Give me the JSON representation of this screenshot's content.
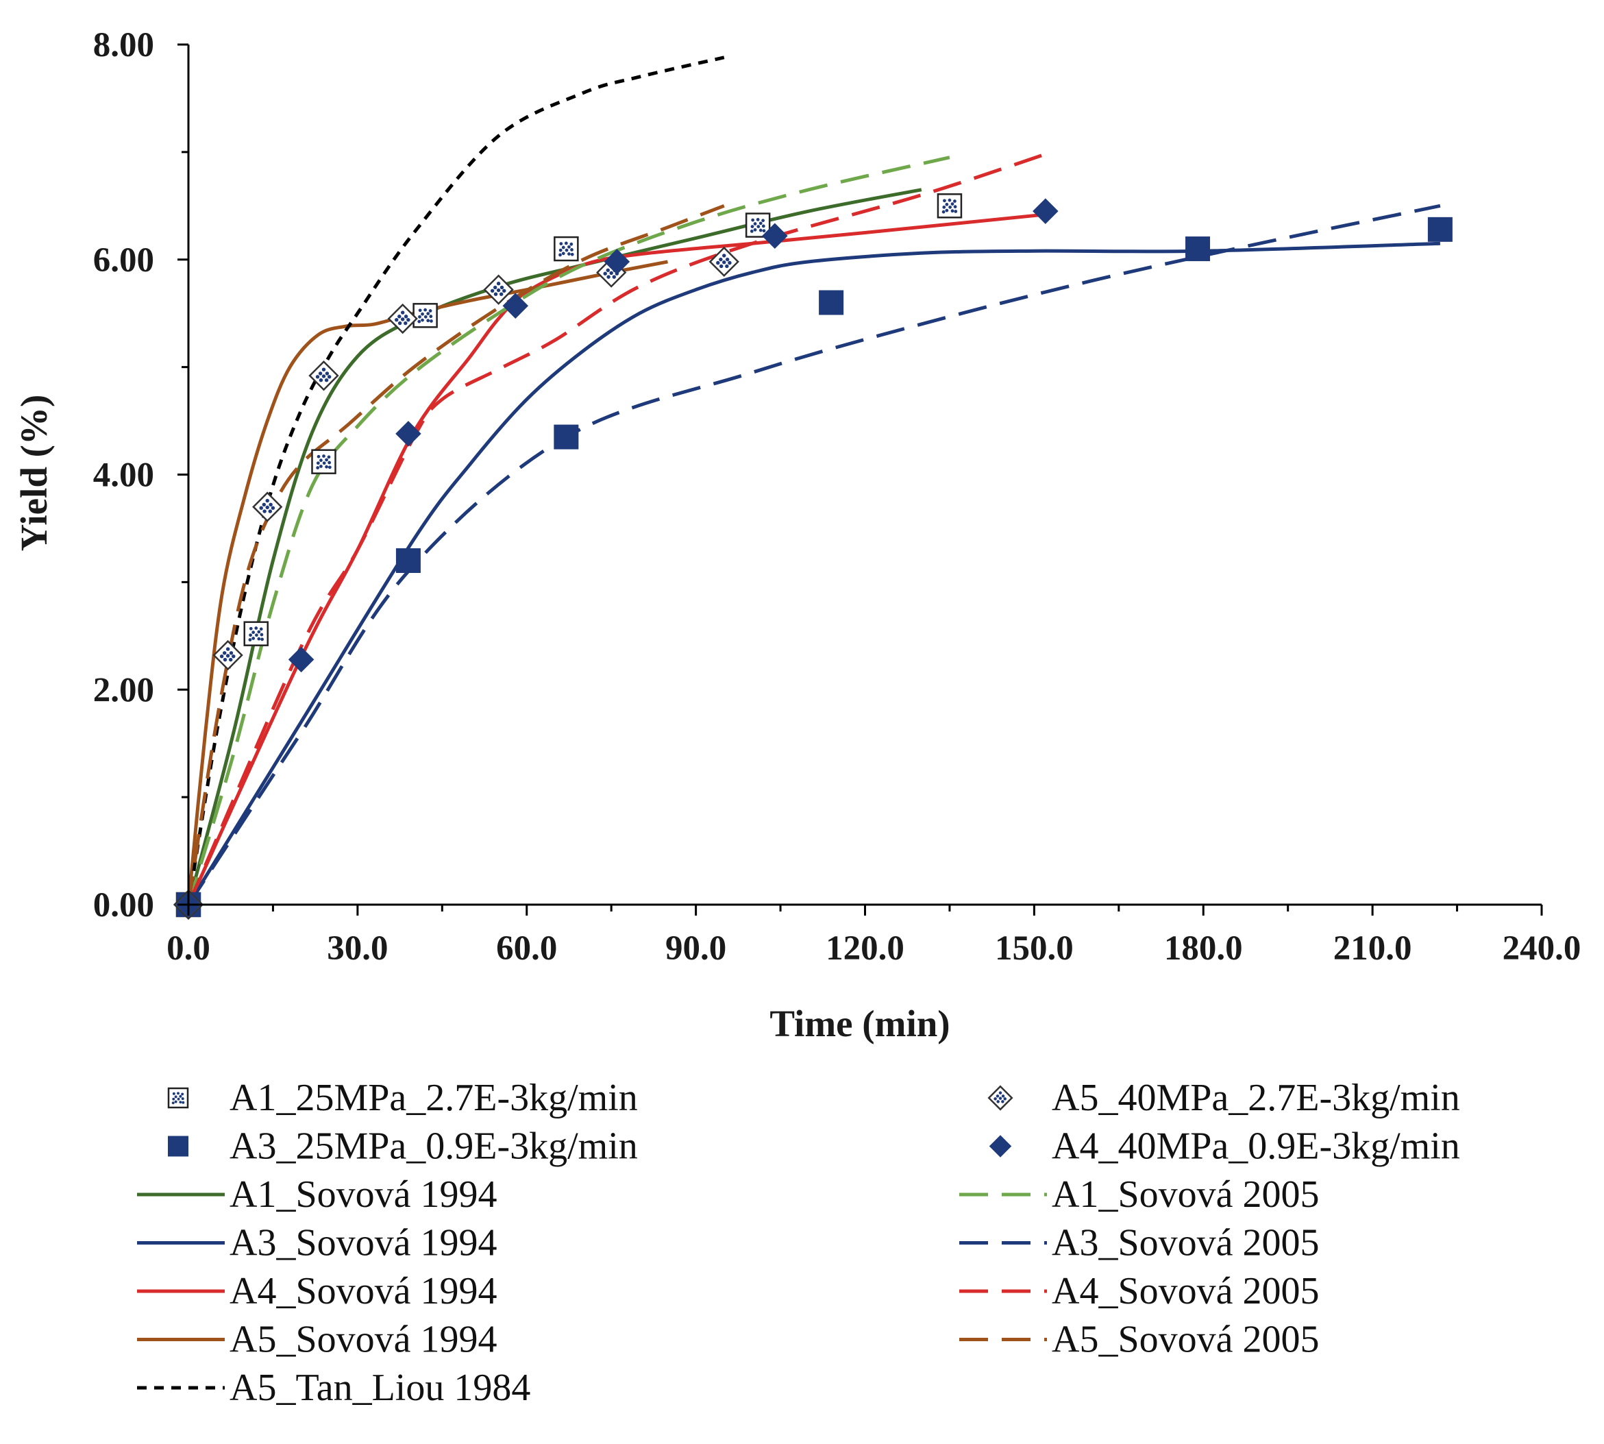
{
  "chart_data": {
    "type": "scatter+line",
    "title": "",
    "xlabel": "Time (min)",
    "ylabel": "Yield (%)",
    "xlim": [
      0,
      240
    ],
    "ylim": [
      0,
      8
    ],
    "x_ticks": [
      0,
      30,
      60,
      90,
      120,
      150,
      180,
      210,
      240
    ],
    "x_tick_labels": [
      "0.0",
      "30.0",
      "60.0",
      "90.0",
      "120.0",
      "150.0",
      "180.0",
      "210.0",
      "240.0"
    ],
    "y_ticks": [
      0,
      2,
      4,
      6,
      8
    ],
    "y_tick_labels": [
      "0.00",
      "2.00",
      "4.00",
      "6.00",
      "8.00"
    ],
    "grid": false,
    "legend_position": "bottom",
    "colors": {
      "navy": "#1f3a7a",
      "dark_green": "#3c6b2a",
      "light_green": "#6fa84a",
      "red": "#d92b2b",
      "brown": "#a0521b",
      "black": "#000000"
    },
    "series": [
      {
        "name": "A1_25MPa_2.7E-3kg/min",
        "kind": "points",
        "marker": "dotted-square",
        "color": "#1f3a7a",
        "x": [
          0,
          12,
          24,
          42,
          67,
          101,
          135
        ],
        "y": [
          0,
          2.52,
          4.12,
          5.48,
          6.1,
          6.32,
          6.5
        ]
      },
      {
        "name": "A3_25MPa_0.9E-3kg/min",
        "kind": "points",
        "marker": "square",
        "color": "#1f3a7a",
        "x": [
          0,
          39,
          67,
          114,
          179,
          222
        ],
        "y": [
          0,
          3.2,
          4.35,
          5.6,
          6.1,
          6.28
        ]
      },
      {
        "name": "A1_Sovová 1994",
        "kind": "line",
        "dash": "solid",
        "color": "#3c6b2a",
        "x": [
          0,
          8,
          15,
          22,
          30,
          40,
          55,
          70,
          90,
          110,
          130
        ],
        "y": [
          0,
          1.6,
          3.2,
          4.4,
          5.1,
          5.45,
          5.75,
          5.95,
          6.2,
          6.45,
          6.65
        ]
      },
      {
        "name": "A3_Sovová 1994",
        "kind": "line",
        "dash": "solid",
        "color": "#1f3a7a",
        "x": [
          0,
          20,
          40,
          50,
          60,
          70,
          80,
          90,
          100,
          110,
          130,
          150,
          180,
          222
        ],
        "y": [
          0,
          1.7,
          3.4,
          4.1,
          4.7,
          5.15,
          5.5,
          5.72,
          5.88,
          5.98,
          6.06,
          6.08,
          6.08,
          6.15
        ]
      },
      {
        "name": "A4_Sovová 1994",
        "kind": "line",
        "dash": "solid",
        "color": "#d92b2b",
        "x": [
          0,
          20,
          30,
          40,
          50,
          55,
          60,
          70,
          80,
          100,
          120,
          152
        ],
        "y": [
          0,
          2.3,
          3.3,
          4.4,
          5.1,
          5.45,
          5.7,
          5.95,
          6.05,
          6.15,
          6.25,
          6.42
        ]
      },
      {
        "name": "A5_Sovová 1994",
        "kind": "line",
        "dash": "solid",
        "color": "#a0521b",
        "x": [
          0,
          3,
          6,
          10,
          14,
          18,
          23,
          28,
          33,
          40,
          50,
          60,
          75,
          85
        ],
        "y": [
          0,
          1.6,
          2.9,
          3.8,
          4.5,
          5.0,
          5.3,
          5.38,
          5.4,
          5.5,
          5.62,
          5.72,
          5.88,
          5.98
        ]
      },
      {
        "name": "A5_Tan_Liou 1984",
        "kind": "line",
        "dash": "short",
        "color": "#000000",
        "x": [
          0,
          5,
          10,
          15,
          20,
          25,
          30,
          40,
          55,
          70,
          80,
          95
        ],
        "y": [
          0,
          1.6,
          2.9,
          3.9,
          4.6,
          5.1,
          5.5,
          6.25,
          7.15,
          7.55,
          7.7,
          7.88
        ]
      },
      {
        "name": "A5_40MPa_2.7E-3kg/min",
        "kind": "points",
        "marker": "dotted-diamond",
        "color": "#1f3a7a",
        "x": [
          0,
          7,
          14,
          24,
          38,
          55,
          75,
          95
        ],
        "y": [
          0,
          2.32,
          3.7,
          4.92,
          5.45,
          5.72,
          5.88,
          5.98
        ]
      },
      {
        "name": "A4_40MPa_0.9E-3kg/min",
        "kind": "points",
        "marker": "diamond",
        "color": "#1f3a7a",
        "x": [
          0,
          20,
          39,
          58,
          76,
          104,
          152
        ],
        "y": [
          0,
          2.28,
          4.38,
          5.57,
          5.98,
          6.22,
          6.45
        ]
      },
      {
        "name": "A1_Sovová 2005",
        "kind": "line",
        "dash": "long",
        "color": "#6fa84a",
        "x": [
          0,
          8,
          15,
          22,
          30,
          40,
          55,
          70,
          90,
          110,
          135
        ],
        "y": [
          0,
          1.4,
          2.8,
          3.9,
          4.45,
          4.95,
          5.5,
          5.95,
          6.35,
          6.65,
          6.95
        ]
      },
      {
        "name": "A3_Sovová 2005",
        "kind": "line",
        "dash": "long",
        "color": "#1f3a7a",
        "x": [
          0,
          20,
          39,
          67,
          100,
          130,
          160,
          190,
          222
        ],
        "y": [
          0,
          1.6,
          3.1,
          4.35,
          4.95,
          5.4,
          5.8,
          6.15,
          6.5
        ]
      },
      {
        "name": "A4_Sovová 2005",
        "kind": "line",
        "dash": "long",
        "color": "#d92b2b",
        "x": [
          0,
          20,
          30,
          40,
          45,
          55,
          65,
          80,
          100,
          130,
          152
        ],
        "y": [
          0,
          2.4,
          3.3,
          4.35,
          4.7,
          4.98,
          5.25,
          5.75,
          6.15,
          6.6,
          6.98
        ]
      },
      {
        "name": "A5_Sovová 2005",
        "kind": "line",
        "dash": "long",
        "color": "#a0521b",
        "x": [
          0,
          5,
          10,
          15,
          20,
          28,
          40,
          55,
          70,
          85,
          95
        ],
        "y": [
          0,
          1.7,
          3.0,
          3.7,
          4.1,
          4.45,
          5.0,
          5.55,
          6.0,
          6.3,
          6.5
        ]
      }
    ],
    "legend_layout": [
      {
        "series": "A1_25MPa_2.7E-3kg/min",
        "col": 0,
        "row": 0
      },
      {
        "series": "A3_25MPa_0.9E-3kg/min",
        "col": 0,
        "row": 1
      },
      {
        "series": "A1_Sovová 1994",
        "col": 0,
        "row": 2
      },
      {
        "series": "A3_Sovová 1994",
        "col": 0,
        "row": 3
      },
      {
        "series": "A4_Sovová 1994",
        "col": 0,
        "row": 4
      },
      {
        "series": "A5_Sovová 1994",
        "col": 0,
        "row": 5
      },
      {
        "series": "A5_Tan_Liou 1984",
        "col": 0,
        "row": 6
      },
      {
        "series": "A5_40MPa_2.7E-3kg/min",
        "col": 1,
        "row": 0
      },
      {
        "series": "A4_40MPa_0.9E-3kg/min",
        "col": 1,
        "row": 1
      },
      {
        "series": "A1_Sovová 2005",
        "col": 1,
        "row": 2
      },
      {
        "series": "A3_Sovová 2005",
        "col": 1,
        "row": 3
      },
      {
        "series": "A4_Sovová 2005",
        "col": 1,
        "row": 4
      },
      {
        "series": "A5_Sovová 2005",
        "col": 1,
        "row": 5
      }
    ]
  }
}
